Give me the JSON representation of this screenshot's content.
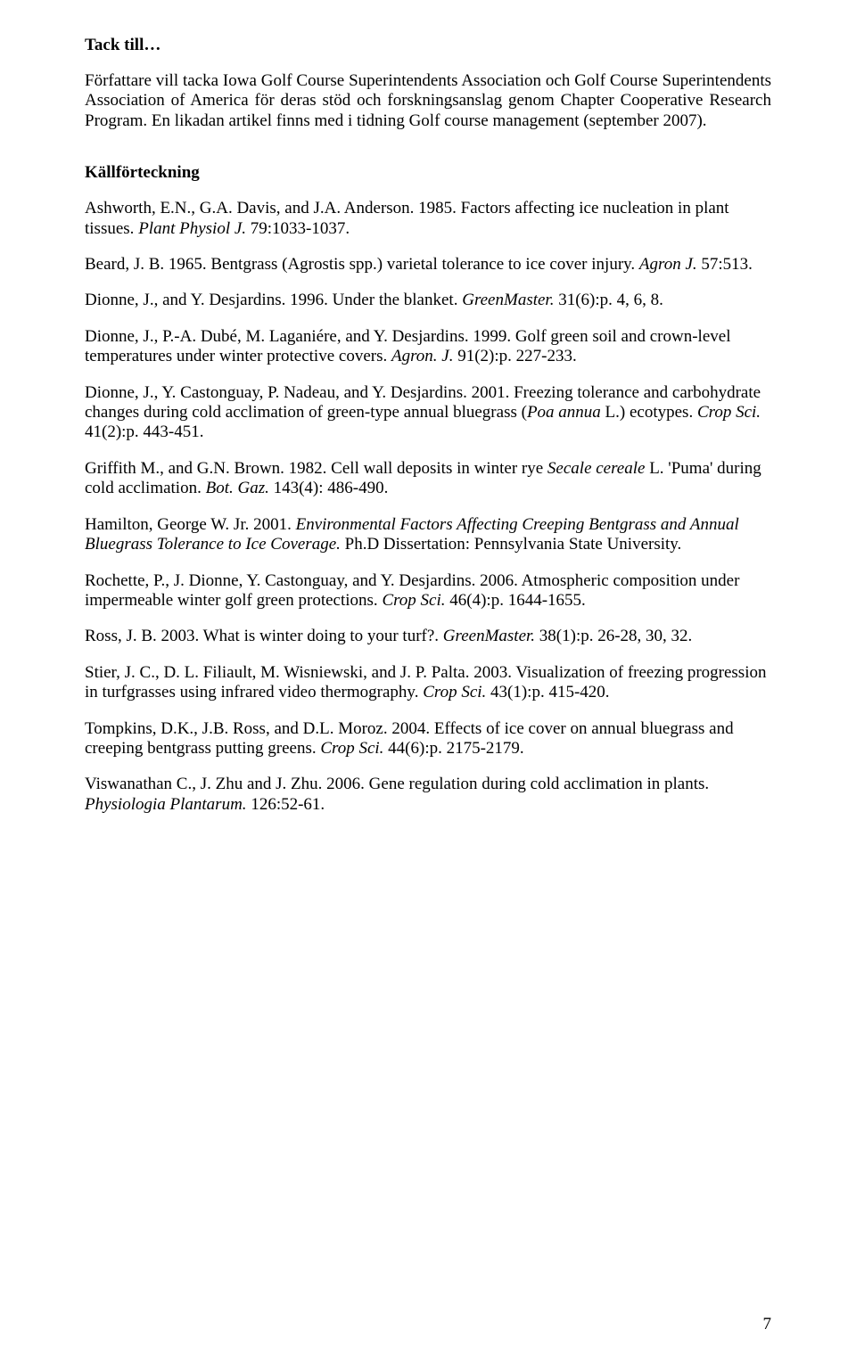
{
  "heading_tack": "Tack till…",
  "para_intro": [
    {
      "t": "Författare vill tacka Iowa Golf Course Superintendents Association och Golf Course Superintendents Association of America för deras stöd och forskningsanslag genom Chapter Cooperative Research Program. En likadan artikel finns med i tidning Golf course management (september 2007).",
      "i": false
    }
  ],
  "heading_kall": "Källförteckning",
  "refs": [
    [
      {
        "t": "Ashworth, E.N., G.A. Davis, and J.A. Anderson. 1985. Factors affecting ice nucleation in plant tissues. ",
        "i": false
      },
      {
        "t": "Plant Physiol J. ",
        "i": true
      },
      {
        "t": "79:1033-1037.",
        "i": false
      }
    ],
    [
      {
        "t": "Beard, J. B. 1965. Bentgrass (Agrostis spp.) varietal tolerance to ice cover injury. ",
        "i": false
      },
      {
        "t": "Agron J. ",
        "i": true
      },
      {
        "t": "57:513.",
        "i": false
      }
    ],
    [
      {
        "t": "Dionne, J., and Y. Desjardins. 1996. Under the blanket. ",
        "i": false
      },
      {
        "t": "GreenMaster. ",
        "i": true
      },
      {
        "t": "31(6):p. 4, 6, 8.",
        "i": false
      }
    ],
    [
      {
        "t": "Dionne, J., P.-A. Dubé, M. Laganiére, and Y. Desjardins. 1999. Golf green soil and crown-level temperatures under winter protective covers. ",
        "i": false
      },
      {
        "t": "Agron. J. ",
        "i": true
      },
      {
        "t": "91(2):p. 227-233.",
        "i": false
      }
    ],
    [
      {
        "t": "Dionne, J., Y. Castonguay, P. Nadeau, and Y. Desjardins. 2001. Freezing tolerance and carbohydrate changes during cold acclimation of green-type annual bluegrass (",
        "i": false
      },
      {
        "t": "Poa annua ",
        "i": true
      },
      {
        "t": "L.) ecotypes. ",
        "i": false
      },
      {
        "t": "Crop Sci. ",
        "i": true
      },
      {
        "t": "41(2):p. 443-451.",
        "i": false
      }
    ],
    [
      {
        "t": "Griffith M., and G.N. Brown. 1982. Cell wall deposits in winter rye ",
        "i": false
      },
      {
        "t": "Secale cereale ",
        "i": true
      },
      {
        "t": "L. 'Puma' during cold acclimation. ",
        "i": false
      },
      {
        "t": "Bot. Gaz. ",
        "i": true
      },
      {
        "t": "143(4): 486-490.",
        "i": false
      }
    ],
    [
      {
        "t": "Hamilton, George W. Jr. 2001. ",
        "i": false
      },
      {
        "t": "Environmental Factors Affecting Creeping Bentgrass and Annual Bluegrass Tolerance to Ice Coverage. ",
        "i": true
      },
      {
        "t": "Ph.D Dissertation: Pennsylvania State University.",
        "i": false
      }
    ],
    [
      {
        "t": "Rochette, P., J. Dionne, Y. Castonguay, and Y. Desjardins. 2006. Atmospheric composition under impermeable winter golf green protections. ",
        "i": false
      },
      {
        "t": "Crop Sci. ",
        "i": true
      },
      {
        "t": "46(4):p. 1644-1655.",
        "i": false
      }
    ],
    [
      {
        "t": "Ross, J. B. 2003. What is winter doing to your turf?. ",
        "i": false
      },
      {
        "t": "GreenMaster. ",
        "i": true
      },
      {
        "t": "38(1):p. 26-28, 30, 32.",
        "i": false
      }
    ],
    [
      {
        "t": "Stier, J. C., D. L. Filiault, M. Wisniewski, and J. P. Palta. 2003. Visualization of freezing progression in turfgrasses using infrared video thermography. ",
        "i": false
      },
      {
        "t": "Crop Sci. ",
        "i": true
      },
      {
        "t": "43(1):p. 415-420.",
        "i": false
      }
    ],
    [
      {
        "t": "Tompkins, D.K., J.B. Ross, and D.L. Moroz. 2004. Effects of ice cover on annual bluegrass and creeping bentgrass putting greens. ",
        "i": false
      },
      {
        "t": "Crop Sci. ",
        "i": true
      },
      {
        "t": "44(6):p. 2175-2179.",
        "i": false
      }
    ],
    [
      {
        "t": "Viswanathan C., J. Zhu and J. Zhu. 2006. Gene regulation during cold acclimation in plants. ",
        "i": false
      },
      {
        "t": "Physiologia Plantarum. ",
        "i": true
      },
      {
        "t": "126:52-61.",
        "i": false
      }
    ]
  ],
  "page_number": "7"
}
